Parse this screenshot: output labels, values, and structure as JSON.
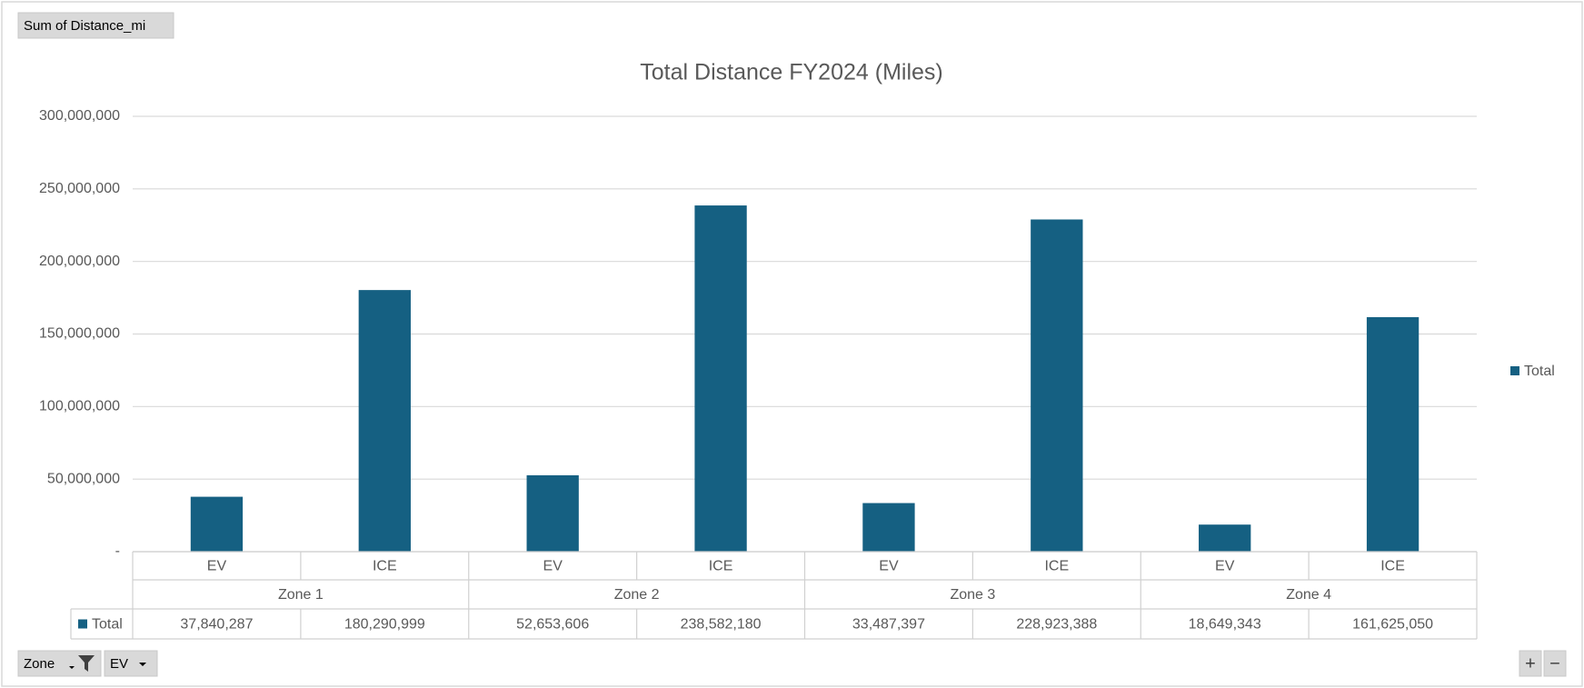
{
  "chart_data": {
    "type": "bar",
    "title": "Total Distance FY2024 (Miles)",
    "categories": [
      "EV",
      "ICE",
      "EV",
      "ICE",
      "EV",
      "ICE",
      "EV",
      "ICE"
    ],
    "groups": [
      "Zone 1",
      "Zone 2",
      "Zone 3",
      "Zone 4"
    ],
    "series": [
      {
        "name": "Total",
        "color": "#156082",
        "values": [
          37840287,
          180290999,
          52653606,
          238582180,
          33487397,
          228923388,
          18649343,
          161625050
        ],
        "value_labels": [
          "37,840,287",
          "180,290,999",
          "52,653,606",
          "238,582,180",
          "33,487,397",
          "228,923,388",
          "18,649,343",
          "161,625,050"
        ]
      }
    ],
    "ylim": [
      0,
      300000000
    ],
    "yticks": [
      {
        "value": 0,
        "label": "-"
      },
      {
        "value": 50000000,
        "label": "50,000,000"
      },
      {
        "value": 100000000,
        "label": "100,000,000"
      },
      {
        "value": 150000000,
        "label": "150,000,000"
      },
      {
        "value": 200000000,
        "label": "200,000,000"
      },
      {
        "value": 250000000,
        "label": "250,000,000"
      },
      {
        "value": 300000000,
        "label": "300,000,000"
      }
    ],
    "grid": true,
    "legend": "right",
    "data_table": true,
    "value_field_button": "Sum of Distance_mi",
    "axis_field_buttons": [
      "Zone",
      "EV"
    ],
    "zoom_buttons": [
      "+",
      "−"
    ]
  }
}
